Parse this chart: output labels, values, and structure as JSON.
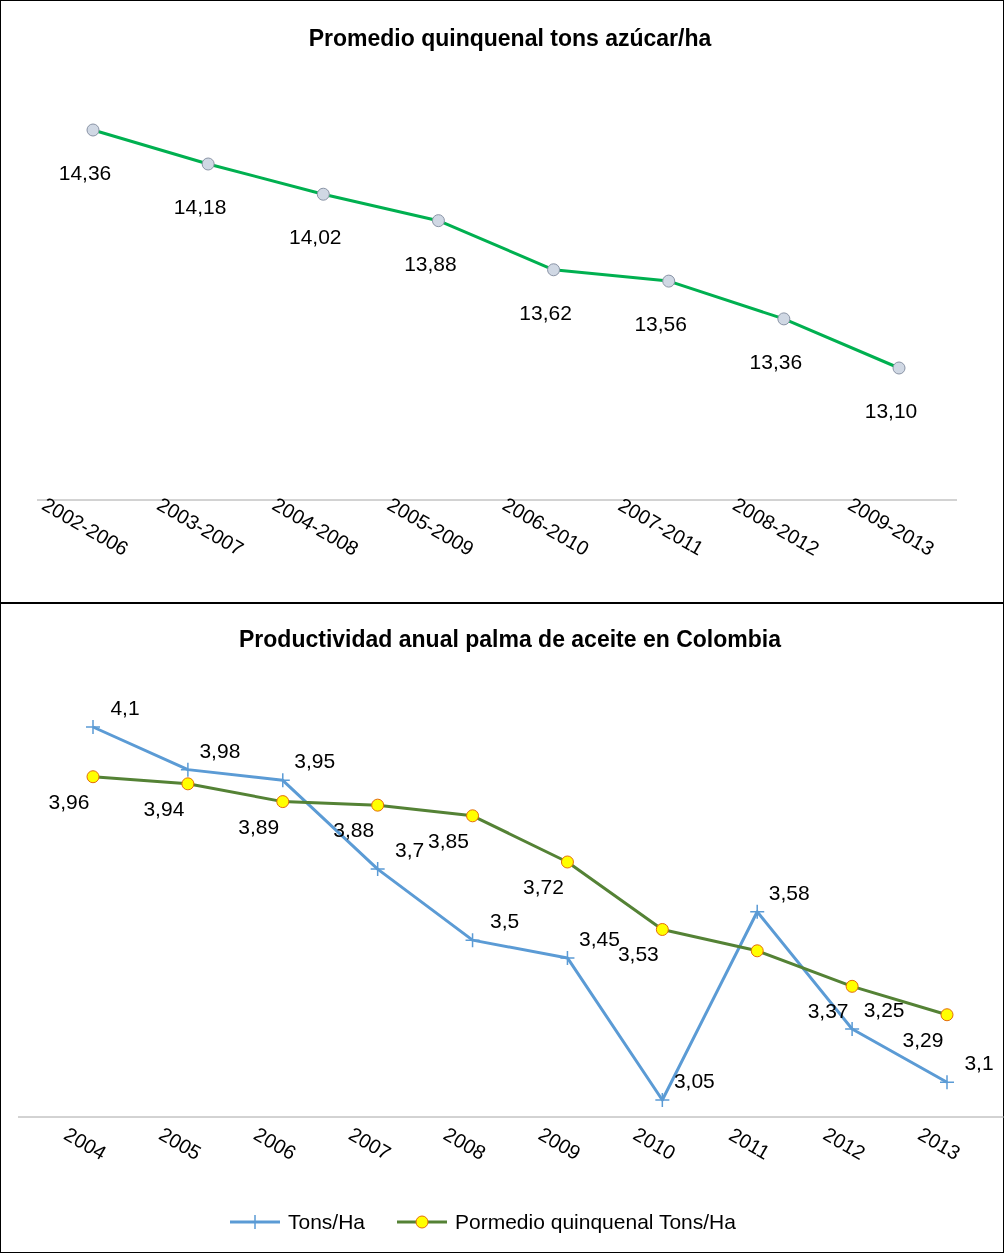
{
  "chart_data": [
    {
      "type": "line",
      "title": "Promedio quinquenal tons azúcar/ha",
      "categories": [
        "2002-2006",
        "2003-2007",
        "2004-2008",
        "2005-2009",
        "2006-2010",
        "2007-2011",
        "2008-2012",
        "2009-2013"
      ],
      "tick_labels": "x",
      "legend": false,
      "marker": "circle",
      "series": [
        {
          "color": "#00b050",
          "values": [
            14.36,
            14.18,
            14.02,
            13.88,
            13.62,
            13.56,
            13.36,
            13.1
          ],
          "value_labels": [
            "14,36",
            "14,18",
            "14,02",
            "13,88",
            "13,62",
            "13,56",
            "13,36",
            "13,10"
          ]
        }
      ]
    },
    {
      "type": "line",
      "title": "Productividad anual palma de aceite en Colombia",
      "categories": [
        "2004",
        "2005",
        "2006",
        "2007",
        "2008",
        "2009",
        "2010",
        "2011",
        "2012",
        "2013"
      ],
      "tick_labels": "x",
      "legend": "bottom",
      "series": [
        {
          "name": "Tons/Ha",
          "color": "#5b9bd5",
          "marker": "cross",
          "values": [
            4.1,
            3.98,
            3.95,
            3.7,
            3.5,
            3.45,
            3.05,
            3.58,
            3.25,
            3.1
          ],
          "value_labels": [
            "4,1",
            "3,98",
            "3,95",
            "3,7",
            "3,5",
            "3,45",
            "3,05",
            "3,58",
            "3,25",
            "3,1"
          ]
        },
        {
          "name": "Pormedio quinquenal Tons/Ha",
          "color": "#548235",
          "marker": "circle",
          "values": [
            3.96,
            3.94,
            3.89,
            3.88,
            3.85,
            3.72,
            3.53,
            3.47,
            3.37,
            3.29
          ],
          "value_labels": [
            "3,96",
            "3,94",
            "3,89",
            "3,88",
            "3,85",
            "3,72",
            "3,53",
            null,
            "3,37",
            "3,29"
          ]
        }
      ]
    }
  ]
}
